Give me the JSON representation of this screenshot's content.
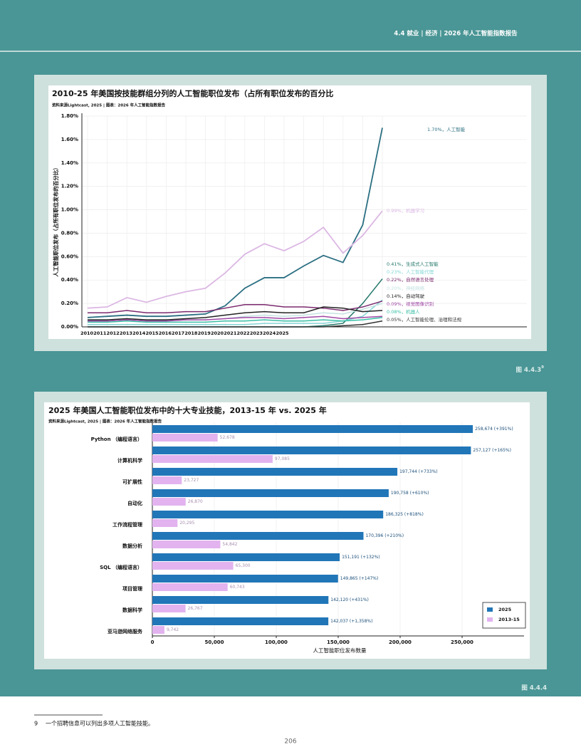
{
  "header": {
    "section": "4.4 就业 | 经济 | 2026 年人工智能指数报告"
  },
  "chart_data": [
    {
      "type": "line",
      "title": "2010-25 年美国按技能群组分列的人工智能职位发布（占所有职位发布的百分比",
      "source": "资料来源Lightcast, 2025 | 图表：2026 年人工智能指数报告",
      "y_label": "人工智能职位发布（占所有职位发布的百分比）",
      "categories": [
        "2010",
        "2011",
        "2012",
        "2013",
        "2014",
        "2015",
        "2016",
        "2017",
        "2018",
        "2019",
        "2020",
        "2021",
        "2022",
        "2023",
        "2024",
        "2025"
      ],
      "ylim": [
        0,
        1.8
      ],
      "yticks": [
        {
          "value": 0,
          "label": "0.00%"
        },
        {
          "value": 0.2,
          "label": "0.20%"
        },
        {
          "value": 0.4,
          "label": "0.40%"
        },
        {
          "value": 0.6,
          "label": "0.60%"
        },
        {
          "value": 0.8,
          "label": "0.80%"
        },
        {
          "value": 1.0,
          "label": "1.00%"
        },
        {
          "value": 1.2,
          "label": "1.20%"
        },
        {
          "value": 1.4,
          "label": "1.40%"
        },
        {
          "value": 1.6,
          "label": "1.60%"
        },
        {
          "value": 1.8,
          "label": "1.80%"
        }
      ],
      "grid": true,
      "series": [
        {
          "label": "1.70%，人工智能",
          "color": "#2b6f82",
          "values": [
            0.08,
            0.09,
            0.1,
            0.09,
            0.09,
            0.1,
            0.11,
            0.18,
            0.33,
            0.42,
            0.42,
            0.52,
            0.61,
            0.55,
            0.87,
            1.7
          ]
        },
        {
          "label": "0.99%，机器学习",
          "color": "#dcb8e4",
          "values": [
            0.16,
            0.17,
            0.25,
            0.21,
            0.26,
            0.3,
            0.33,
            0.46,
            0.62,
            0.71,
            0.65,
            0.73,
            0.85,
            0.63,
            0.78,
            0.99
          ]
        },
        {
          "label": "0.41%，生成式人工智能",
          "color": "#24786a",
          "values": [
            0,
            0,
            0,
            0,
            0,
            0,
            0,
            0,
            0,
            0,
            0,
            0,
            0.01,
            0.03,
            0.2,
            0.41
          ]
        },
        {
          "label": "0.23%，人工智能代理",
          "color": "#86d6d6",
          "values": [
            0.02,
            0.02,
            0.02,
            0.02,
            0.02,
            0.02,
            0.02,
            0.02,
            0.02,
            0.03,
            0.03,
            0.03,
            0.03,
            0.05,
            0.09,
            0.23
          ]
        },
        {
          "label": "0.22%，自然语言处理",
          "color": "#7b2a6e",
          "values": [
            0.12,
            0.12,
            0.14,
            0.12,
            0.12,
            0.13,
            0.13,
            0.16,
            0.19,
            0.19,
            0.17,
            0.17,
            0.16,
            0.14,
            0.17,
            0.22
          ]
        },
        {
          "label": "0.20%，神经网络",
          "color": "#c6e2e2",
          "values": [
            0.06,
            0.06,
            0.07,
            0.06,
            0.06,
            0.06,
            0.06,
            0.07,
            0.09,
            0.1,
            0.09,
            0.1,
            0.12,
            0.11,
            0.15,
            0.2
          ]
        },
        {
          "label": "0.14%，自动驾驶",
          "color": "#222222",
          "values": [
            0.06,
            0.06,
            0.07,
            0.06,
            0.06,
            0.07,
            0.08,
            0.1,
            0.12,
            0.13,
            0.12,
            0.12,
            0.17,
            0.16,
            0.13,
            0.14
          ]
        },
        {
          "label": "0.09%，视觉图像识别",
          "color": "#a04aa6",
          "values": [
            0.05,
            0.05,
            0.06,
            0.05,
            0.05,
            0.06,
            0.06,
            0.07,
            0.08,
            0.08,
            0.07,
            0.08,
            0.09,
            0.07,
            0.08,
            0.09
          ]
        },
        {
          "label": "0.08%，机器人",
          "color": "#3bbfa6",
          "values": [
            0.04,
            0.04,
            0.05,
            0.04,
            0.04,
            0.04,
            0.04,
            0.05,
            0.05,
            0.06,
            0.05,
            0.05,
            0.06,
            0.05,
            0.06,
            0.08
          ]
        },
        {
          "label": "0.05%，人工智能伦理、治理和法规",
          "color": "#333333",
          "values": [
            0,
            0,
            0,
            0,
            0,
            0,
            0,
            0,
            0,
            0,
            0,
            0,
            0,
            0.01,
            0.02,
            0.05
          ]
        }
      ]
    },
    {
      "type": "hbar",
      "title": "2025 年美国人工智能职位发布中的十大专业技能，2013-15 年 vs. 2025 年",
      "source": "资料来源Lightcast, 2025 | 图表：2026 年人工智能指数报告",
      "x_label": "人工智能职位发布数量",
      "categories": [
        "Python （编程语言）",
        "计算机科学",
        "可扩展性",
        "自动化",
        "工作流程管理",
        "数据分析",
        "SQL （编程语言）",
        "项目管理",
        "数据科学",
        "亚马逊网络服务"
      ],
      "xlim": [
        0,
        300000
      ],
      "xticks": [
        0,
        {
          "value": 50000,
          "label": "50,000"
        },
        {
          "value": 100000,
          "label": "100,000"
        },
        {
          "value": 150000,
          "label": "150,000"
        },
        {
          "value": 200000,
          "label": "200,000"
        },
        {
          "value": 250000,
          "label": "250,000"
        }
      ],
      "grid": true,
      "legend": "lower right",
      "series": [
        {
          "name": "2025",
          "color": "#2176b8",
          "values": [
            258674,
            257127,
            197744,
            190758,
            186325,
            170396,
            151191,
            149865,
            142120,
            142037
          ],
          "value_labels": [
            "258,674 (+391%)",
            "257,127 (+165%)",
            "197,744 (+733%)",
            "190,758 (+610%)",
            "186,325 (+818%)",
            "170,396 (+210%)",
            "151,191 (+132%)",
            "149,865 (+147%)",
            "142,120 (+431%)",
            "142,037 (+1,358%)"
          ]
        },
        {
          "name": "2013-15",
          "color": "#e2b3ef",
          "values": [
            52678,
            97085,
            23727,
            26870,
            20295,
            54842,
            65300,
            60743,
            26767,
            9742
          ],
          "value_labels": [
            "52,678",
            "97,085",
            "23,727",
            "26,870",
            "20,295",
            "54,842",
            "65,300",
            "60,743",
            "26,767",
            "9,742"
          ]
        }
      ]
    }
  ],
  "figures": [
    {
      "label": "图 4.4.3",
      "note": "9"
    },
    {
      "label": "图 4.4.4"
    }
  ],
  "footnote": {
    "number": "9",
    "text": "一个招聘信息可以列出多项人工智能技能。"
  },
  "page_number": "206"
}
